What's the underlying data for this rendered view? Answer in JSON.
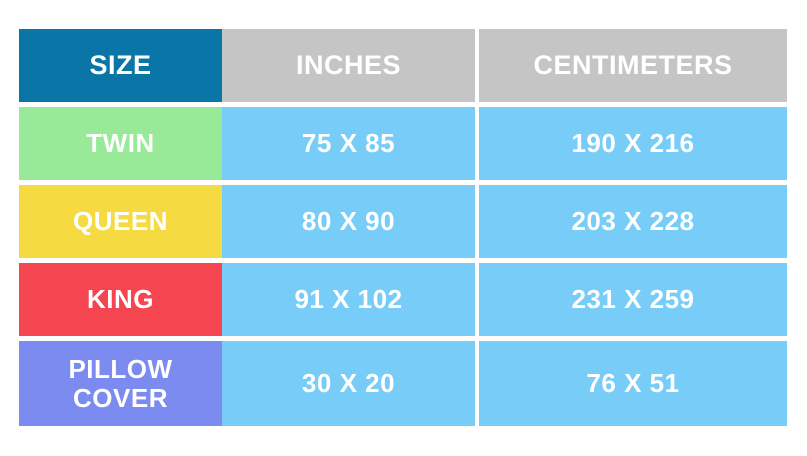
{
  "colors": {
    "header_size_bg": "#0a76a8",
    "header_units_bg": "#c5c5c5",
    "value_cell_bg": "#77cdf8",
    "text": "#ffffff",
    "row_twin_bg": "#98e998",
    "row_queen_bg": "#f5da41",
    "row_king_bg": "#f44551",
    "row_pillow_bg": "#7b8bef"
  },
  "table": {
    "headers": [
      {
        "label": "SIZE"
      },
      {
        "label": "INCHES"
      },
      {
        "label": "CENTIMETERS"
      }
    ],
    "rows": [
      {
        "size": "TWIN",
        "inches": "75 X 85",
        "centimeters": "190 X 216",
        "label_bg": "#98e998"
      },
      {
        "size": "QUEEN",
        "inches": "80 X 90",
        "centimeters": "203 X 228",
        "label_bg": "#f5da41"
      },
      {
        "size": "KING",
        "inches": "91 X 102",
        "centimeters": "231 X 259",
        "label_bg": "#f44551"
      },
      {
        "size": "PILLOW COVER",
        "inches": "30 X 20",
        "centimeters": "76 X 51",
        "label_bg": "#7b8bef"
      }
    ]
  },
  "chart_data": {
    "type": "table",
    "columns": [
      "SIZE",
      "INCHES",
      "CENTIMETERS"
    ],
    "rows": [
      [
        "TWIN",
        "75 X 85",
        "190 X 216"
      ],
      [
        "QUEEN",
        "80 X 90",
        "203 X 228"
      ],
      [
        "KING",
        "91 X 102",
        "231 X 259"
      ],
      [
        "PILLOW COVER",
        "30 X 20",
        "76 X 51"
      ]
    ]
  }
}
